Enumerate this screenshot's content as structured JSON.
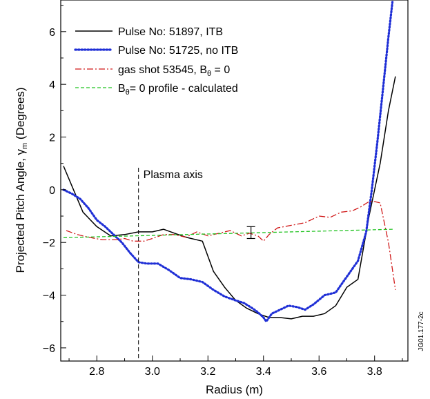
{
  "chart_data": {
    "type": "line",
    "xlabel": "Radius (m)",
    "ylabel_prefix": "Projected Pitch Angle, ",
    "ylabel_symbol": "γ",
    "ylabel_sub": "m",
    "ylabel_suffix": " (Degrees)",
    "xlim": [
      2.67,
      3.92
    ],
    "ylim": [
      -6.5,
      7.2
    ],
    "xticks": [
      2.8,
      3.0,
      3.2,
      3.4,
      3.6,
      3.8
    ],
    "xtick_labels": [
      "2.8",
      "3.0",
      "3.2",
      "3.4",
      "3.6",
      "3.8"
    ],
    "yticks": [
      -6,
      -4,
      -2,
      0,
      2,
      4,
      6
    ],
    "ytick_labels": [
      "−6",
      "−4",
      "−2",
      "0",
      "2",
      "4",
      "6"
    ],
    "legend_position": "top-left",
    "series": [
      {
        "name": "Pulse No: 51897, ITB",
        "legend_parts": [
          "Pulse No: 51897, ITB"
        ],
        "color": "#000000",
        "style": "solid",
        "x": [
          2.68,
          2.72,
          2.75,
          2.8,
          2.85,
          2.9,
          2.95,
          3.0,
          3.04,
          3.08,
          3.12,
          3.18,
          3.22,
          3.26,
          3.3,
          3.34,
          3.38,
          3.42,
          3.46,
          3.5,
          3.54,
          3.58,
          3.62,
          3.66,
          3.7,
          3.74,
          3.78,
          3.82,
          3.85,
          3.875
        ],
        "y": [
          0.9,
          -0.1,
          -0.85,
          -1.4,
          -1.75,
          -1.7,
          -1.6,
          -1.6,
          -1.5,
          -1.65,
          -1.8,
          -1.95,
          -3.1,
          -3.7,
          -4.2,
          -4.5,
          -4.7,
          -4.85,
          -4.85,
          -4.9,
          -4.8,
          -4.8,
          -4.7,
          -4.4,
          -3.7,
          -3.4,
          -1.0,
          1.0,
          3.0,
          4.3
        ]
      },
      {
        "name": "Pulse No: 51725, no ITB",
        "legend_parts": [
          "Pulse No: 51725, no ITB"
        ],
        "color": "#1f2fd6",
        "style": "dotted",
        "x": [
          2.68,
          2.71,
          2.74,
          2.77,
          2.8,
          2.83,
          2.86,
          2.89,
          2.92,
          2.95,
          2.98,
          3.02,
          3.06,
          3.1,
          3.14,
          3.18,
          3.22,
          3.26,
          3.3,
          3.33,
          3.36,
          3.38,
          3.4,
          3.41,
          3.43,
          3.46,
          3.49,
          3.52,
          3.55,
          3.58,
          3.62,
          3.66,
          3.7,
          3.74,
          3.77,
          3.79,
          3.81,
          3.83,
          3.85,
          3.865
        ],
        "y": [
          0.0,
          -0.15,
          -0.35,
          -0.7,
          -1.15,
          -1.4,
          -1.7,
          -2.0,
          -2.4,
          -2.75,
          -2.8,
          -2.8,
          -3.05,
          -3.35,
          -3.4,
          -3.5,
          -3.8,
          -4.05,
          -4.2,
          -4.3,
          -4.5,
          -4.65,
          -4.85,
          -5.0,
          -4.7,
          -4.55,
          -4.4,
          -4.45,
          -4.55,
          -4.35,
          -4.0,
          -3.9,
          -3.3,
          -2.7,
          -1.6,
          0.0,
          1.8,
          3.8,
          5.8,
          7.2
        ]
      },
      {
        "name": "gas shot 53545, Bθ = 0",
        "legend_parts": [
          "gas shot 53545, B",
          "θ",
          " = 0"
        ],
        "color": "#d01818",
        "style": "dashdot",
        "x": [
          2.69,
          2.73,
          2.77,
          2.82,
          2.87,
          2.9,
          2.93,
          2.97,
          3.0,
          3.04,
          3.08,
          3.12,
          3.16,
          3.2,
          3.24,
          3.28,
          3.32,
          3.35,
          3.38,
          3.4,
          3.42,
          3.45,
          3.5,
          3.55,
          3.6,
          3.64,
          3.68,
          3.72,
          3.75,
          3.78,
          3.8,
          3.82,
          3.85,
          3.875
        ],
        "y": [
          -1.55,
          -1.7,
          -1.8,
          -1.9,
          -1.9,
          -1.85,
          -1.95,
          -1.95,
          -1.85,
          -1.7,
          -1.7,
          -1.8,
          -1.6,
          -1.75,
          -1.65,
          -1.55,
          -1.75,
          -1.65,
          -1.75,
          -1.95,
          -1.7,
          -1.45,
          -1.35,
          -1.25,
          -1.0,
          -1.05,
          -0.85,
          -0.8,
          -0.65,
          -0.45,
          -0.45,
          -0.5,
          -2.0,
          -3.8
        ]
      },
      {
        "name": "Bθ = 0 profile - calculated",
        "legend_parts": [
          "B",
          "θ",
          "= 0 profile - calculated"
        ],
        "color": "#22c322",
        "style": "dashed",
        "x": [
          2.68,
          3.87
        ],
        "y": [
          -1.82,
          -1.5
        ]
      }
    ],
    "error_bar": {
      "x": 3.355,
      "y": -1.6,
      "low": -1.85,
      "high": -1.4
    },
    "annotations": [
      {
        "text": "Plasma axis",
        "x": 2.95
      }
    ],
    "figure_id": "JG01.177-2c"
  }
}
